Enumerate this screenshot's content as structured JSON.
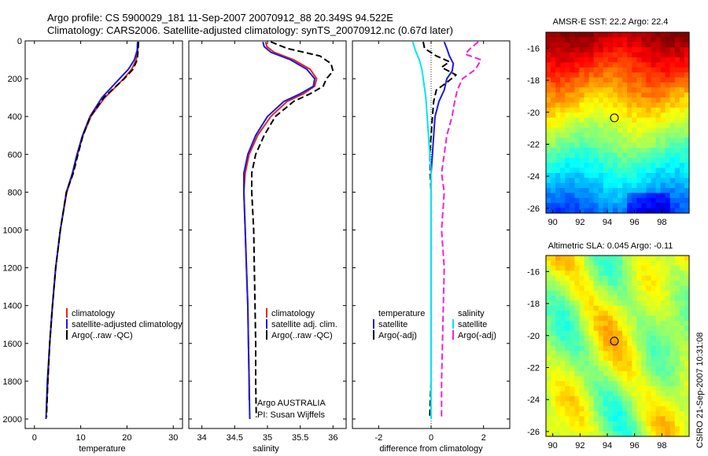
{
  "figure": {
    "title_line1": "Argo profile: CS 5900029_181 11-Sep-2007 20070912_88 20.349S 94.522E",
    "title_line2": "Climatology: CARS2006. Satellite-adjusted climatology: synTS_20070912.nc (0.67d later)",
    "side_stamp": "CSIRO 21-Sep-2007 10:31:08",
    "argo_agency": "Argo AUSTRALIA",
    "argo_pi": "PI: Susan Wijffels"
  },
  "colors": {
    "climatology": "#e8261c",
    "satellite": "#1a1adc",
    "argo": "#000000",
    "sal_satellite": "#00e5ee",
    "sal_argo": "#ee22dd"
  },
  "chart_data": [
    {
      "type": "line",
      "panel": "temperature",
      "xlabel": "temperature",
      "xlim": [
        -2,
        32
      ],
      "ylim": [
        2050,
        0
      ],
      "xticks": [
        0,
        10,
        20,
        30
      ],
      "yticks": [
        0,
        200,
        400,
        600,
        800,
        1000,
        1200,
        1400,
        1600,
        1800,
        2000
      ],
      "legend": [
        "climatology",
        "satellite-adjusted climatology",
        "Argo(..raw -QC)"
      ],
      "series": [
        {
          "name": "climatology",
          "style": "solid",
          "color": "#e8261c",
          "depth": [
            5,
            50,
            100,
            150,
            200,
            250,
            300,
            400,
            500,
            600,
            700,
            800,
            1000,
            1200,
            1400,
            1600,
            1800,
            1950
          ],
          "values": [
            22.4,
            22.3,
            22.0,
            21.0,
            19.3,
            17.3,
            15.2,
            12.2,
            10.5,
            9.3,
            8.3,
            7.0,
            5.6,
            4.6,
            3.9,
            3.3,
            2.9,
            2.6
          ]
        },
        {
          "name": "satellite-adjusted climatology",
          "style": "solid",
          "color": "#1a1adc",
          "depth": [
            5,
            50,
            100,
            150,
            200,
            250,
            300,
            400,
            500,
            600,
            700,
            800,
            1000,
            1200,
            1400,
            1600,
            1800,
            2000
          ],
          "values": [
            22.3,
            22.2,
            21.6,
            20.3,
            18.4,
            16.5,
            14.6,
            12.0,
            10.4,
            9.2,
            8.2,
            6.9,
            5.6,
            4.6,
            3.9,
            3.3,
            2.8,
            2.5
          ]
        },
        {
          "name": "Argo(..raw -QC)",
          "style": "dashed",
          "color": "#000000",
          "depth": [
            5,
            50,
            100,
            150,
            200,
            250,
            300,
            400,
            500,
            600,
            700,
            800,
            1000,
            1200,
            1400,
            1600,
            1800,
            1990
          ],
          "values": [
            22.5,
            22.4,
            22.2,
            21.3,
            19.4,
            17.2,
            15.0,
            12.1,
            10.5,
            9.4,
            8.4,
            6.9,
            5.6,
            4.6,
            3.9,
            3.3,
            2.9,
            2.6
          ]
        }
      ]
    },
    {
      "type": "line",
      "panel": "salinity",
      "xlabel": "salinity",
      "xlim": [
        33.8,
        36.2
      ],
      "ylim": [
        2050,
        0
      ],
      "xticks": [
        34,
        34.5,
        35,
        35.5,
        36
      ],
      "xticklabels": [
        "34",
        "34.5",
        "35",
        "35.5",
        "36"
      ],
      "legend": [
        "climatology",
        "satellite adj. clim.",
        "Argo(..raw -QC)"
      ],
      "series": [
        {
          "name": "climatology",
          "style": "solid",
          "color": "#e8261c",
          "depth": [
            5,
            30,
            60,
            100,
            150,
            200,
            240,
            280,
            320,
            400,
            500,
            600,
            700,
            800,
            1000,
            1200,
            1400,
            1600,
            1800,
            1900
          ],
          "values": [
            34.97,
            34.99,
            35.1,
            35.4,
            35.65,
            35.75,
            35.72,
            35.55,
            35.3,
            35.05,
            34.85,
            34.72,
            34.66,
            34.64,
            34.66,
            34.68,
            34.7,
            34.71,
            34.72,
            34.72
          ]
        },
        {
          "name": "satellite adj. clim.",
          "style": "solid",
          "color": "#1a1adc",
          "depth": [
            5,
            30,
            60,
            100,
            150,
            200,
            240,
            280,
            320,
            400,
            500,
            600,
            700,
            800,
            1000,
            1200,
            1400,
            1600,
            1800,
            2000
          ],
          "values": [
            34.93,
            34.95,
            35.05,
            35.35,
            35.6,
            35.72,
            35.7,
            35.5,
            35.25,
            35.0,
            34.82,
            34.7,
            34.64,
            34.64,
            34.66,
            34.68,
            34.7,
            34.71,
            34.72,
            34.73
          ]
        },
        {
          "name": "Argo(..raw -QC)",
          "style": "dashed",
          "color": "#000000",
          "depth": [
            5,
            40,
            80,
            120,
            160,
            200,
            240,
            280,
            320,
            400,
            500,
            600,
            700,
            800,
            1000,
            1200,
            1400,
            1600,
            1800,
            1990
          ],
          "values": [
            35.05,
            35.3,
            35.8,
            35.97,
            36.0,
            35.9,
            35.85,
            35.65,
            35.4,
            35.12,
            34.95,
            34.82,
            34.76,
            34.76,
            34.79,
            34.8,
            34.81,
            34.82,
            34.82,
            34.83
          ]
        }
      ]
    },
    {
      "type": "line",
      "panel": "difference",
      "xlabel": "difference from climatology",
      "xlim": [
        -3,
        3
      ],
      "ylim": [
        2050,
        0
      ],
      "xticks": [
        -2,
        0,
        2
      ],
      "legend_groups": [
        {
          "title": "temperature",
          "items": [
            "satellite",
            "Argo(-adj)"
          ]
        },
        {
          "title": "salinity",
          "items": [
            "satellite",
            "Argo(-adj)"
          ]
        }
      ],
      "series": [
        {
          "name": "temperature satellite",
          "style": "solid",
          "color": "#1a1adc",
          "depth": [
            5,
            40,
            80,
            120,
            160,
            200,
            260,
            320,
            400,
            500,
            600,
            700,
            800,
            1000,
            1200,
            1500,
            1800,
            2000
          ],
          "values": [
            0.5,
            0.6,
            0.7,
            0.85,
            0.8,
            0.6,
            0.5,
            0.3,
            0.15,
            0.1,
            0.05,
            0.0,
            0.0,
            0.0,
            0.0,
            0.0,
            0.0,
            0.0
          ]
        },
        {
          "name": "temperature Argo(-adj)",
          "style": "dashed",
          "color": "#000000",
          "depth": [
            5,
            40,
            80,
            110,
            140,
            180,
            220,
            260,
            320,
            400,
            500,
            600,
            700,
            800,
            1000,
            1400,
            1800,
            1990
          ],
          "values": [
            -0.3,
            -0.25,
            0.2,
            0.7,
            0.4,
            0.95,
            0.6,
            0.2,
            0.1,
            0.05,
            0.0,
            -0.05,
            -0.03,
            0.0,
            0.0,
            0.0,
            0.0,
            -0.05
          ]
        },
        {
          "name": "salinity satellite",
          "style": "solid",
          "color": "#00e5ee",
          "depth": [
            5,
            50,
            100,
            150,
            200,
            300,
            400,
            500,
            600,
            700,
            800,
            1000,
            1500,
            2000
          ],
          "values": [
            -0.7,
            -0.6,
            -0.45,
            -0.35,
            -0.3,
            -0.2,
            -0.15,
            -0.1,
            -0.05,
            0.0,
            0.0,
            0.0,
            0.0,
            0.0
          ]
        },
        {
          "name": "salinity Argo(-adj)",
          "style": "dashed",
          "color": "#ee22dd",
          "depth": [
            5,
            40,
            70,
            100,
            150,
            200,
            260,
            320,
            400,
            500,
            600,
            700,
            800,
            1000,
            1200,
            1500,
            1800,
            1990
          ],
          "values": [
            1.8,
            1.5,
            1.3,
            1.9,
            1.7,
            1.2,
            1.0,
            0.9,
            0.8,
            0.6,
            0.5,
            0.4,
            0.5,
            0.4,
            0.5,
            0.45,
            0.4,
            0.4
          ]
        }
      ]
    },
    {
      "type": "heatmap",
      "panel": "sst_map",
      "title": "AMSR-E SST: 22.2 Argo: 22.4",
      "xlim": [
        89.5,
        100
      ],
      "ylim": [
        -26.3,
        -15
      ],
      "xticks": [
        90,
        92,
        94,
        96,
        98
      ],
      "yticks": [
        -16,
        -18,
        -20,
        -22,
        -24,
        -26
      ],
      "marker": {
        "lon": 94.52,
        "lat": -20.35
      }
    },
    {
      "type": "heatmap",
      "panel": "sla_map",
      "title": "Altimetric SLA: 0.045 Argo: -0.11",
      "xlim": [
        89.5,
        100
      ],
      "ylim": [
        -26.3,
        -15
      ],
      "xticks": [
        90,
        92,
        94,
        96,
        98
      ],
      "yticks": [
        -16,
        -18,
        -20,
        -22,
        -24,
        -26
      ],
      "marker": {
        "lon": 94.52,
        "lat": -20.35
      }
    }
  ]
}
